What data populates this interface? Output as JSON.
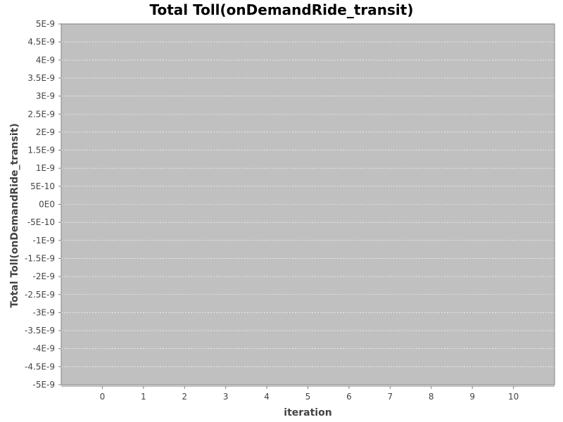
{
  "chart_data": {
    "type": "line",
    "title": "Total Toll(onDemandRide_transit)",
    "xlabel": "iteration",
    "ylabel": "Total Toll(onDemandRide_transit)",
    "x_ticks": [
      "0",
      "1",
      "2",
      "3",
      "4",
      "5",
      "6",
      "7",
      "8",
      "9",
      "10"
    ],
    "x_range": [
      -1,
      11
    ],
    "y_ticks": [
      "5E-9",
      "4.5E-9",
      "4E-9",
      "3.5E-9",
      "3E-9",
      "2.5E-9",
      "2E-9",
      "1.5E-9",
      "1E-9",
      "5E-10",
      "0E0",
      "-5E-10",
      "-1E-9",
      "-1.5E-9",
      "-2E-9",
      "-2.5E-9",
      "-3E-9",
      "-3.5E-9",
      "-4E-9",
      "-4.5E-9",
      "-5E-9"
    ],
    "ylim": [
      -5e-09,
      5e-09
    ],
    "series": [],
    "grid": true,
    "legend": "none",
    "colors": {
      "plot_background": "#c0c0c0",
      "gridline": "#ffffff",
      "outline": "#808080"
    }
  }
}
